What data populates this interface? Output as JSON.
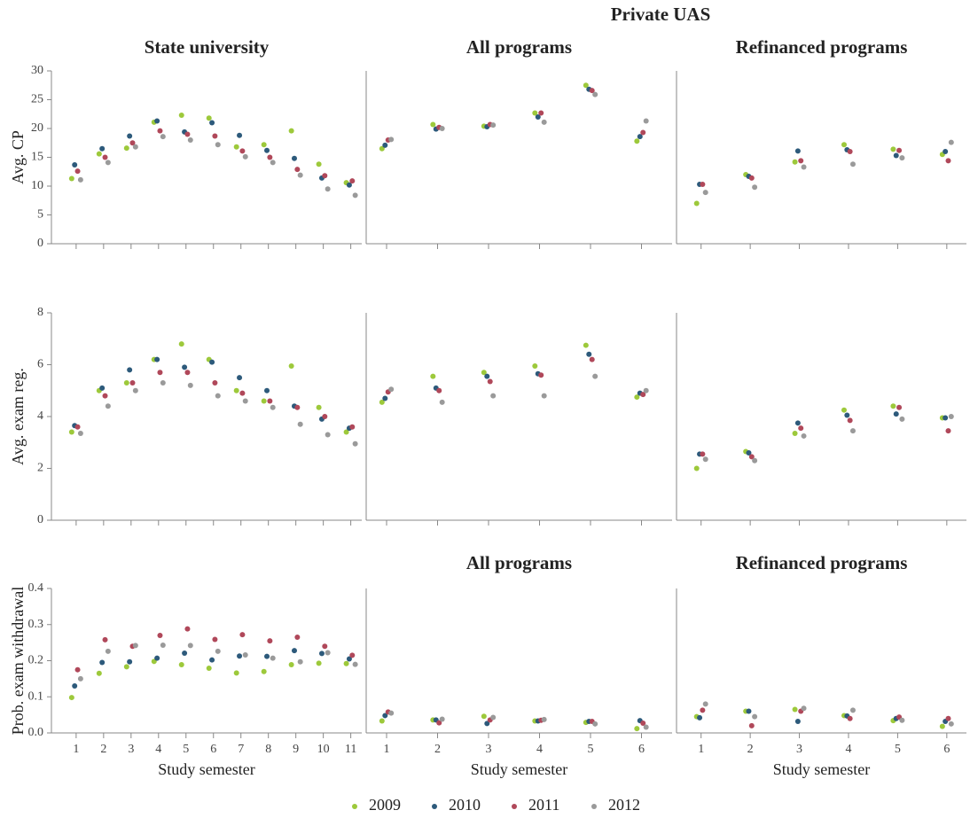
{
  "header": "Private UAS",
  "chart_data": [
    {
      "type": "scatter",
      "title": "State university",
      "y_label": "Avg. CP",
      "x": [
        1,
        2,
        3,
        4,
        5,
        6,
        7,
        8,
        9,
        10,
        11
      ],
      "xlim": [
        0.1,
        11.4
      ],
      "ylim": [
        0,
        30
      ],
      "yticks": [
        0,
        5,
        10,
        15,
        20,
        25,
        30
      ],
      "series": [
        {
          "name": "2009",
          "color": "#9dc93b",
          "values": [
            11.3,
            15.6,
            16.6,
            21.1,
            22.3,
            21.8,
            16.8,
            17.2,
            19.6,
            13.8,
            10.6
          ]
        },
        {
          "name": "2010",
          "color": "#2d5a7b",
          "values": [
            13.7,
            16.5,
            18.7,
            21.3,
            19.4,
            21.0,
            18.8,
            16.2,
            14.8,
            11.4,
            10.2
          ]
        },
        {
          "name": "2011",
          "color": "#b0485a",
          "values": [
            12.6,
            15.0,
            17.5,
            19.6,
            19.0,
            18.7,
            16.1,
            15.0,
            12.9,
            11.8,
            10.9
          ]
        },
        {
          "name": "2012",
          "color": "#9a9a9a",
          "values": [
            11.1,
            14.1,
            16.8,
            18.6,
            18.0,
            17.2,
            15.1,
            14.1,
            11.9,
            9.5,
            8.4
          ]
        }
      ]
    },
    {
      "type": "scatter",
      "title": "All programs",
      "x": [
        1,
        2,
        3,
        4,
        5,
        6
      ],
      "xlim": [
        0.6,
        6.6
      ],
      "ylim": [
        0,
        30
      ],
      "series": [
        {
          "color": "#9dc93b",
          "values": [
            16.5,
            20.7,
            20.4,
            22.7,
            27.5,
            17.8
          ]
        },
        {
          "color": "#2d5a7b",
          "values": [
            17.1,
            19.9,
            20.3,
            22.0,
            26.8,
            18.6
          ]
        },
        {
          "color": "#b0485a",
          "values": [
            18.0,
            20.2,
            20.7,
            22.7,
            26.6,
            19.3
          ]
        },
        {
          "color": "#9a9a9a",
          "values": [
            18.1,
            20.0,
            20.6,
            21.1,
            25.9,
            21.3
          ]
        }
      ]
    },
    {
      "type": "scatter",
      "title": "Refinanced programs",
      "x": [
        1,
        2,
        3,
        4,
        5,
        6
      ],
      "xlim": [
        0.5,
        6.4
      ],
      "ylim": [
        0,
        30
      ],
      "series": [
        {
          "color": "#9dc93b",
          "values": [
            7.0,
            12.0,
            14.2,
            17.2,
            16.4,
            15.5
          ]
        },
        {
          "color": "#2d5a7b",
          "values": [
            10.3,
            11.7,
            16.1,
            16.3,
            15.3,
            16.0
          ]
        },
        {
          "color": "#b0485a",
          "values": [
            10.3,
            11.4,
            14.4,
            16.0,
            16.2,
            14.4
          ]
        },
        {
          "color": "#9a9a9a",
          "values": [
            8.9,
            9.8,
            13.3,
            13.8,
            14.9,
            17.6
          ]
        }
      ]
    },
    {
      "type": "scatter",
      "y_label": "Avg. exam reg.",
      "x": [
        1,
        2,
        3,
        4,
        5,
        6,
        7,
        8,
        9,
        10,
        11
      ],
      "xlim": [
        0.1,
        11.4
      ],
      "ylim": [
        0,
        8
      ],
      "yticks": [
        0,
        2,
        4,
        6,
        8
      ],
      "series": [
        {
          "color": "#9dc93b",
          "values": [
            3.4,
            5.0,
            5.3,
            6.2,
            6.8,
            6.2,
            5.0,
            4.6,
            5.95,
            4.35,
            3.4
          ]
        },
        {
          "color": "#2d5a7b",
          "values": [
            3.65,
            5.1,
            5.8,
            6.2,
            5.9,
            6.1,
            5.5,
            5.0,
            4.4,
            3.9,
            3.55
          ]
        },
        {
          "color": "#b0485a",
          "values": [
            3.6,
            4.8,
            5.3,
            5.7,
            5.7,
            5.3,
            4.9,
            4.6,
            4.35,
            4.0,
            3.6
          ]
        },
        {
          "color": "#9a9a9a",
          "values": [
            3.35,
            4.4,
            5.0,
            5.3,
            5.2,
            4.8,
            4.6,
            4.35,
            3.7,
            3.3,
            2.95
          ]
        }
      ]
    },
    {
      "type": "scatter",
      "x": [
        1,
        2,
        3,
        4,
        5,
        6
      ],
      "xlim": [
        0.6,
        6.6
      ],
      "ylim": [
        0,
        8
      ],
      "series": [
        {
          "color": "#9dc93b",
          "values": [
            4.55,
            5.55,
            5.7,
            5.95,
            6.75,
            4.75
          ]
        },
        {
          "color": "#2d5a7b",
          "values": [
            4.7,
            5.1,
            5.55,
            5.65,
            6.4,
            4.9
          ]
        },
        {
          "color": "#b0485a",
          "values": [
            4.95,
            5.0,
            5.35,
            5.6,
            6.2,
            4.85
          ]
        },
        {
          "color": "#9a9a9a",
          "values": [
            5.05,
            4.55,
            4.8,
            4.8,
            5.55,
            5.0
          ]
        }
      ]
    },
    {
      "type": "scatter",
      "x": [
        1,
        2,
        3,
        4,
        5,
        6
      ],
      "xlim": [
        0.5,
        6.4
      ],
      "ylim": [
        0,
        8
      ],
      "series": [
        {
          "color": "#9dc93b",
          "values": [
            2.0,
            2.65,
            3.35,
            4.25,
            4.4,
            3.95
          ]
        },
        {
          "color": "#2d5a7b",
          "values": [
            2.55,
            2.6,
            3.75,
            4.05,
            4.1,
            3.95
          ]
        },
        {
          "color": "#b0485a",
          "values": [
            2.55,
            2.45,
            3.55,
            3.85,
            4.35,
            3.45
          ]
        },
        {
          "color": "#9a9a9a",
          "values": [
            2.35,
            2.3,
            3.25,
            3.45,
            3.9,
            4.0
          ]
        }
      ]
    },
    {
      "type": "scatter",
      "y_label": "Prob. exam withdrawal",
      "x_label": "Study semester",
      "x": [
        1,
        2,
        3,
        4,
        5,
        6,
        7,
        8,
        9,
        10,
        11
      ],
      "xlim": [
        0.1,
        11.4
      ],
      "ylim": [
        0,
        0.4
      ],
      "yticks": [
        {
          "value": 0,
          "label": "0.0"
        },
        0.1,
        0.2,
        0.3,
        0.4
      ],
      "series": [
        {
          "color": "#9dc93b",
          "values": [
            0.098,
            0.165,
            0.183,
            0.198,
            0.189,
            0.179,
            0.166,
            0.17,
            0.189,
            0.193,
            0.192
          ]
        },
        {
          "color": "#2d5a7b",
          "values": [
            0.13,
            0.195,
            0.197,
            0.207,
            0.221,
            0.202,
            0.213,
            0.212,
            0.228,
            0.22,
            0.205
          ]
        },
        {
          "color": "#b0485a",
          "values": [
            0.175,
            0.258,
            0.24,
            0.27,
            0.288,
            0.259,
            0.272,
            0.255,
            0.265,
            0.24,
            0.215
          ]
        },
        {
          "color": "#9a9a9a",
          "values": [
            0.15,
            0.226,
            0.242,
            0.243,
            0.242,
            0.226,
            0.216,
            0.207,
            0.197,
            0.222,
            0.19
          ]
        }
      ]
    },
    {
      "type": "scatter",
      "title": "All programs",
      "x_label": "Study semester",
      "x": [
        1,
        2,
        3,
        4,
        5,
        6
      ],
      "xlim": [
        0.6,
        6.6
      ],
      "ylim": [
        0,
        0.4
      ],
      "series": [
        {
          "color": "#9dc93b",
          "values": [
            0.033,
            0.036,
            0.046,
            0.033,
            0.029,
            0.012
          ]
        },
        {
          "color": "#2d5a7b",
          "values": [
            0.048,
            0.036,
            0.026,
            0.033,
            0.032,
            0.034
          ]
        },
        {
          "color": "#b0485a",
          "values": [
            0.058,
            0.028,
            0.036,
            0.035,
            0.032,
            0.027
          ]
        },
        {
          "color": "#9a9a9a",
          "values": [
            0.055,
            0.038,
            0.043,
            0.037,
            0.025,
            0.016
          ]
        }
      ]
    },
    {
      "type": "scatter",
      "title": "Refinanced programs",
      "x_label": "Study semester",
      "x": [
        1,
        2,
        3,
        4,
        5,
        6
      ],
      "xlim": [
        0.5,
        6.4
      ],
      "ylim": [
        0,
        0.4
      ],
      "series": [
        {
          "color": "#9dc93b",
          "values": [
            0.045,
            0.06,
            0.065,
            0.048,
            0.034,
            0.018
          ]
        },
        {
          "color": "#2d5a7b",
          "values": [
            0.042,
            0.06,
            0.032,
            0.047,
            0.04,
            0.032
          ]
        },
        {
          "color": "#b0485a",
          "values": [
            0.063,
            0.02,
            0.06,
            0.04,
            0.044,
            0.04
          ]
        },
        {
          "color": "#9a9a9a",
          "values": [
            0.08,
            0.045,
            0.068,
            0.063,
            0.035,
            0.025
          ]
        }
      ]
    }
  ]
}
